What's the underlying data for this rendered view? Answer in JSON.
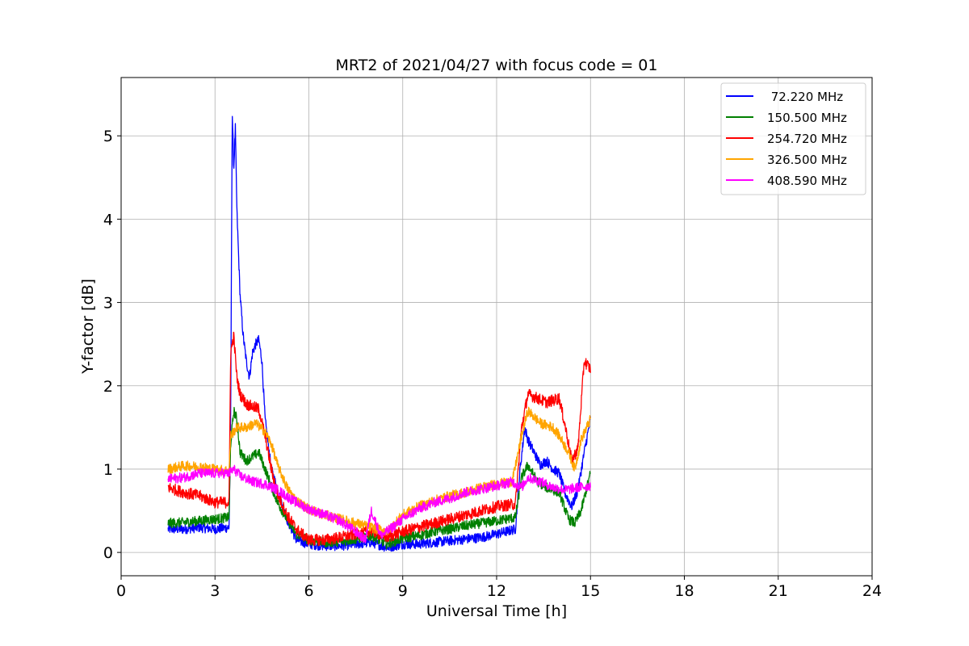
{
  "chart_data": {
    "type": "line",
    "title": "MRT2 of 2021/04/27 with focus code = 01",
    "xlabel": "Universal Time [h]",
    "ylabel": "Y-factor [dB]",
    "xlim": [
      0,
      24
    ],
    "ylim": [
      -0.28,
      5.7
    ],
    "xticks": [
      0,
      3,
      6,
      9,
      12,
      15,
      18,
      21,
      24
    ],
    "yticks": [
      0,
      1,
      2,
      3,
      4,
      5
    ],
    "grid": true,
    "legend_position": "top-right",
    "series": [
      {
        "name": " 72.220 MHz",
        "color": "#0000ff",
        "noise": 0.06,
        "points": [
          [
            1.5,
            0.28
          ],
          [
            2.0,
            0.28
          ],
          [
            2.5,
            0.3
          ],
          [
            3.0,
            0.28
          ],
          [
            3.45,
            0.3
          ],
          [
            3.5,
            1.5
          ],
          [
            3.55,
            5.3
          ],
          [
            3.6,
            4.6
          ],
          [
            3.65,
            5.1
          ],
          [
            3.7,
            4.1
          ],
          [
            3.8,
            3.1
          ],
          [
            3.9,
            2.6
          ],
          [
            4.0,
            2.3
          ],
          [
            4.1,
            2.1
          ],
          [
            4.2,
            2.4
          ],
          [
            4.3,
            2.5
          ],
          [
            4.4,
            2.55
          ],
          [
            4.5,
            2.3
          ],
          [
            4.6,
            1.6
          ],
          [
            4.8,
            1.0
          ],
          [
            5.0,
            0.75
          ],
          [
            5.3,
            0.4
          ],
          [
            5.6,
            0.15
          ],
          [
            6.0,
            0.1
          ],
          [
            6.5,
            0.08
          ],
          [
            7.0,
            0.08
          ],
          [
            7.5,
            0.1
          ],
          [
            8.0,
            0.12
          ],
          [
            8.5,
            0.06
          ],
          [
            9.0,
            0.1
          ],
          [
            9.5,
            0.1
          ],
          [
            10.0,
            0.12
          ],
          [
            10.5,
            0.14
          ],
          [
            11.0,
            0.16
          ],
          [
            11.5,
            0.18
          ],
          [
            12.0,
            0.22
          ],
          [
            12.6,
            0.28
          ],
          [
            12.75,
            1.0
          ],
          [
            12.9,
            1.5
          ],
          [
            13.0,
            1.35
          ],
          [
            13.2,
            1.2
          ],
          [
            13.4,
            1.05
          ],
          [
            13.6,
            1.1
          ],
          [
            13.8,
            1.0
          ],
          [
            14.0,
            0.95
          ],
          [
            14.2,
            0.7
          ],
          [
            14.4,
            0.55
          ],
          [
            14.6,
            0.75
          ],
          [
            14.8,
            1.2
          ],
          [
            15.0,
            1.6
          ]
        ]
      },
      {
        "name": "150.500 MHz",
        "color": "#008000",
        "noise": 0.06,
        "points": [
          [
            1.5,
            0.35
          ],
          [
            2.0,
            0.36
          ],
          [
            2.5,
            0.38
          ],
          [
            3.0,
            0.4
          ],
          [
            3.45,
            0.42
          ],
          [
            3.5,
            1.3
          ],
          [
            3.6,
            1.7
          ],
          [
            3.7,
            1.6
          ],
          [
            3.8,
            1.2
          ],
          [
            4.0,
            1.1
          ],
          [
            4.2,
            1.15
          ],
          [
            4.4,
            1.2
          ],
          [
            4.6,
            1.0
          ],
          [
            4.8,
            0.8
          ],
          [
            5.0,
            0.6
          ],
          [
            5.3,
            0.4
          ],
          [
            5.6,
            0.22
          ],
          [
            6.0,
            0.15
          ],
          [
            6.5,
            0.12
          ],
          [
            7.0,
            0.13
          ],
          [
            7.5,
            0.16
          ],
          [
            8.0,
            0.2
          ],
          [
            8.5,
            0.1
          ],
          [
            9.0,
            0.17
          ],
          [
            9.5,
            0.2
          ],
          [
            10.0,
            0.25
          ],
          [
            10.5,
            0.28
          ],
          [
            11.0,
            0.32
          ],
          [
            11.5,
            0.35
          ],
          [
            12.0,
            0.38
          ],
          [
            12.6,
            0.42
          ],
          [
            12.8,
            0.9
          ],
          [
            13.0,
            1.05
          ],
          [
            13.3,
            0.85
          ],
          [
            13.6,
            0.78
          ],
          [
            14.0,
            0.72
          ],
          [
            14.3,
            0.4
          ],
          [
            14.5,
            0.35
          ],
          [
            14.7,
            0.5
          ],
          [
            15.0,
            0.95
          ]
        ]
      },
      {
        "name": "254.720 MHz",
        "color": "#ff0000",
        "noise": 0.07,
        "points": [
          [
            1.5,
            0.78
          ],
          [
            2.0,
            0.72
          ],
          [
            2.5,
            0.68
          ],
          [
            3.0,
            0.6
          ],
          [
            3.45,
            0.6
          ],
          [
            3.5,
            2.4
          ],
          [
            3.6,
            2.6
          ],
          [
            3.7,
            2.1
          ],
          [
            3.8,
            1.9
          ],
          [
            4.0,
            1.78
          ],
          [
            4.2,
            1.75
          ],
          [
            4.4,
            1.72
          ],
          [
            4.6,
            1.4
          ],
          [
            4.8,
            1.0
          ],
          [
            5.0,
            0.7
          ],
          [
            5.3,
            0.45
          ],
          [
            5.6,
            0.28
          ],
          [
            6.0,
            0.15
          ],
          [
            6.5,
            0.15
          ],
          [
            7.0,
            0.18
          ],
          [
            7.5,
            0.22
          ],
          [
            8.0,
            0.26
          ],
          [
            8.5,
            0.18
          ],
          [
            9.0,
            0.25
          ],
          [
            9.5,
            0.3
          ],
          [
            10.0,
            0.35
          ],
          [
            10.5,
            0.4
          ],
          [
            11.0,
            0.45
          ],
          [
            11.5,
            0.5
          ],
          [
            12.0,
            0.55
          ],
          [
            12.6,
            0.58
          ],
          [
            12.8,
            1.5
          ],
          [
            13.0,
            1.9
          ],
          [
            13.3,
            1.85
          ],
          [
            13.6,
            1.8
          ],
          [
            14.0,
            1.85
          ],
          [
            14.2,
            1.5
          ],
          [
            14.4,
            1.1
          ],
          [
            14.6,
            1.25
          ],
          [
            14.8,
            2.3
          ],
          [
            15.0,
            2.2
          ]
        ]
      },
      {
        "name": "326.500 MHz",
        "color": "#ffa500",
        "noise": 0.06,
        "points": [
          [
            1.5,
            1.0
          ],
          [
            2.0,
            1.04
          ],
          [
            2.5,
            1.03
          ],
          [
            3.0,
            1.0
          ],
          [
            3.45,
            0.98
          ],
          [
            3.5,
            1.4
          ],
          [
            3.7,
            1.5
          ],
          [
            4.0,
            1.5
          ],
          [
            4.3,
            1.55
          ],
          [
            4.6,
            1.45
          ],
          [
            4.8,
            1.3
          ],
          [
            5.0,
            1.05
          ],
          [
            5.3,
            0.78
          ],
          [
            5.6,
            0.62
          ],
          [
            6.0,
            0.52
          ],
          [
            6.5,
            0.45
          ],
          [
            7.0,
            0.4
          ],
          [
            7.5,
            0.35
          ],
          [
            8.0,
            0.3
          ],
          [
            8.5,
            0.25
          ],
          [
            9.0,
            0.45
          ],
          [
            9.5,
            0.55
          ],
          [
            10.0,
            0.62
          ],
          [
            10.5,
            0.68
          ],
          [
            11.0,
            0.72
          ],
          [
            11.5,
            0.78
          ],
          [
            12.0,
            0.82
          ],
          [
            12.5,
            0.85
          ],
          [
            12.8,
            1.4
          ],
          [
            13.0,
            1.7
          ],
          [
            13.4,
            1.55
          ],
          [
            13.8,
            1.5
          ],
          [
            14.0,
            1.4
          ],
          [
            14.3,
            1.2
          ],
          [
            14.5,
            1.0
          ],
          [
            14.7,
            1.35
          ],
          [
            15.0,
            1.6
          ]
        ]
      },
      {
        "name": "408.590 MHz",
        "color": "#ff00ff",
        "noise": 0.06,
        "points": [
          [
            1.5,
            0.88
          ],
          [
            2.0,
            0.9
          ],
          [
            2.5,
            0.95
          ],
          [
            3.0,
            0.95
          ],
          [
            3.45,
            0.95
          ],
          [
            3.6,
            1.0
          ],
          [
            3.8,
            0.92
          ],
          [
            4.2,
            0.85
          ],
          [
            4.6,
            0.82
          ],
          [
            5.0,
            0.75
          ],
          [
            5.5,
            0.62
          ],
          [
            6.0,
            0.52
          ],
          [
            6.5,
            0.45
          ],
          [
            7.0,
            0.38
          ],
          [
            7.5,
            0.25
          ],
          [
            7.8,
            0.15
          ],
          [
            8.0,
            0.5
          ],
          [
            8.3,
            0.2
          ],
          [
            8.6,
            0.28
          ],
          [
            9.0,
            0.4
          ],
          [
            9.5,
            0.52
          ],
          [
            10.0,
            0.6
          ],
          [
            10.5,
            0.65
          ],
          [
            11.0,
            0.72
          ],
          [
            11.5,
            0.76
          ],
          [
            12.0,
            0.8
          ],
          [
            12.5,
            0.85
          ],
          [
            12.8,
            0.78
          ],
          [
            13.0,
            0.9
          ],
          [
            13.4,
            0.85
          ],
          [
            13.8,
            0.78
          ],
          [
            14.2,
            0.75
          ],
          [
            14.6,
            0.78
          ],
          [
            15.0,
            0.8
          ]
        ]
      }
    ]
  }
}
